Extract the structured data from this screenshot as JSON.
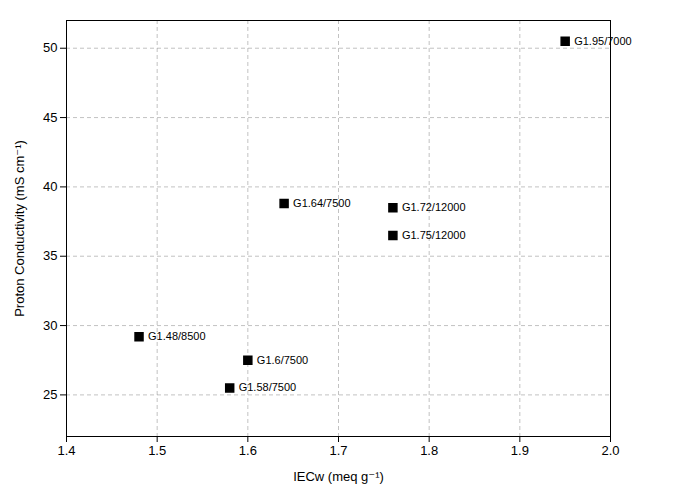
{
  "chart_data": {
    "type": "scatter",
    "x": [
      1.48,
      1.58,
      1.6,
      1.64,
      1.76,
      1.76,
      1.95
    ],
    "values": [
      29.2,
      25.5,
      27.5,
      38.8,
      38.5,
      36.5,
      50.5
    ],
    "annotations": [
      "G1.48/8500",
      "G1.58/7500",
      "G1.6/7500",
      "G1.64/7500",
      "G1.72/12000",
      "G1.75/12000",
      "G1.95/7000"
    ],
    "marker": "square",
    "color": "black",
    "xlabel": "IECw (meq g⁻¹)",
    "ylabel": "Proton Conductivity (mS cm⁻¹)",
    "xlim": [
      1.4,
      2.0
    ],
    "ylim": [
      22,
      52
    ],
    "xticks": [
      1.4,
      1.5,
      1.6,
      1.7,
      1.8,
      1.9,
      {
        "value": 2.0,
        "label": "2.0"
      }
    ],
    "yticks": [
      25,
      30,
      35,
      40,
      45,
      50
    ],
    "grid": true
  }
}
